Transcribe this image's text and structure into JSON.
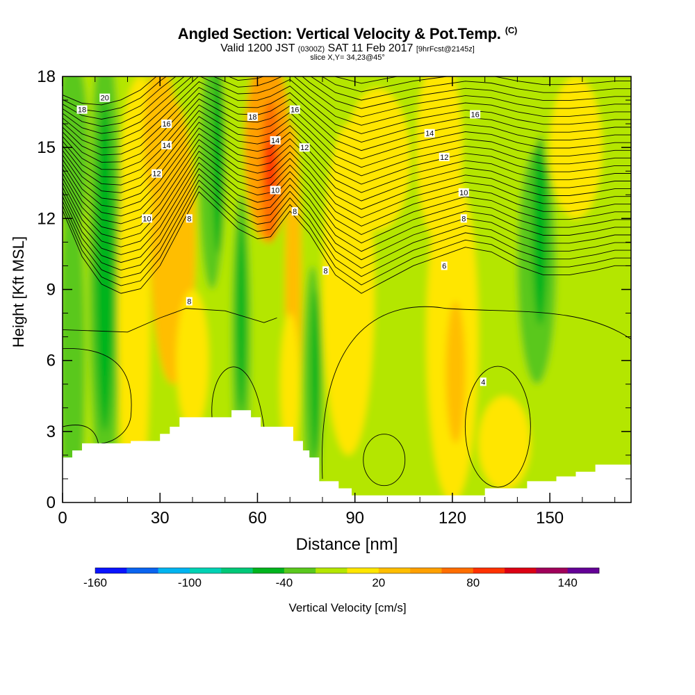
{
  "header": {
    "title_main": "Angled Section: Vertical Velocity & Pot.Temp.",
    "title_unit": "(C)",
    "valid_prefix": "Valid 1200 JST",
    "valid_zulu": "(0300Z)",
    "valid_date": "SAT 11 Feb 2017",
    "forecast_tag": "[9hrFcst@2145z]",
    "slice_label": "slice X,Y= 34,23@45°"
  },
  "chart_data": {
    "type": "heatmap",
    "xlabel": "Distance [nm]",
    "ylabel": "Height [Kft MSL]",
    "xlim": [
      0,
      175
    ],
    "ylim": [
      0,
      18
    ],
    "x_ticks": [
      0,
      30,
      60,
      90,
      120,
      150
    ],
    "y_ticks": [
      0,
      3,
      6,
      9,
      12,
      15,
      18
    ],
    "filled_variable": "Vertical Velocity [cm/s]",
    "colorbar": {
      "label": "Vertical Velocity [cm/s]",
      "tick_labels": [
        "-160",
        "-100",
        "-40",
        "20",
        "80",
        "140"
      ],
      "tick_values": [
        -160,
        -100,
        -40,
        20,
        80,
        140
      ],
      "range": [
        -160,
        160
      ],
      "colors": [
        "#0a14ff",
        "#0a64f0",
        "#00b4f0",
        "#00d2b4",
        "#00c878",
        "#00b41e",
        "#5ac81e",
        "#b4e600",
        "#ffe600",
        "#ffbe00",
        "#ffa000",
        "#ff6e00",
        "#ff3200",
        "#dc0014",
        "#a0005a",
        "#640096"
      ]
    },
    "contours": {
      "variable": "Potential Temperature (C)",
      "labels": [
        {
          "text": "20",
          "x": 13,
          "y": 17.1
        },
        {
          "text": "18",
          "x": 6,
          "y": 16.6
        },
        {
          "text": "16",
          "x": 32,
          "y": 16.0
        },
        {
          "text": "14",
          "x": 32,
          "y": 15.1
        },
        {
          "text": "12",
          "x": 29,
          "y": 13.9
        },
        {
          "text": "10",
          "x": 26,
          "y": 12.0
        },
        {
          "text": "8",
          "x": 39,
          "y": 12.0
        },
        {
          "text": "8",
          "x": 39,
          "y": 8.5
        },
        {
          "text": "18",
          "x": 58.5,
          "y": 16.3
        },
        {
          "text": "16",
          "x": 71.5,
          "y": 16.6
        },
        {
          "text": "14",
          "x": 65.5,
          "y": 15.3
        },
        {
          "text": "12",
          "x": 74.5,
          "y": 15.0
        },
        {
          "text": "10",
          "x": 65.5,
          "y": 13.2
        },
        {
          "text": "8",
          "x": 71.5,
          "y": 12.3
        },
        {
          "text": "8",
          "x": 81,
          "y": 9.8
        },
        {
          "text": "14",
          "x": 113,
          "y": 15.6
        },
        {
          "text": "16",
          "x": 127,
          "y": 16.4
        },
        {
          "text": "12",
          "x": 117.5,
          "y": 14.6
        },
        {
          "text": "10",
          "x": 123.5,
          "y": 13.1
        },
        {
          "text": "8",
          "x": 123.5,
          "y": 12.0
        },
        {
          "text": "6",
          "x": 117.5,
          "y": 10.0
        },
        {
          "text": "4",
          "x": 129.5,
          "y": 5.1
        }
      ]
    },
    "terrain_profile": [
      [
        0,
        1.9
      ],
      [
        3,
        1.9
      ],
      [
        3,
        2.2
      ],
      [
        6,
        2.2
      ],
      [
        6,
        2.5
      ],
      [
        21,
        2.5
      ],
      [
        21,
        2.6
      ],
      [
        30,
        2.6
      ],
      [
        30,
        2.9
      ],
      [
        33,
        2.9
      ],
      [
        33,
        3.2
      ],
      [
        36,
        3.2
      ],
      [
        36,
        3.6
      ],
      [
        52,
        3.6
      ],
      [
        52,
        3.9
      ],
      [
        58,
        3.9
      ],
      [
        58,
        3.6
      ],
      [
        61,
        3.6
      ],
      [
        61,
        3.2
      ],
      [
        71,
        3.2
      ],
      [
        71,
        2.6
      ],
      [
        74,
        2.6
      ],
      [
        74,
        2.2
      ],
      [
        76,
        2.2
      ],
      [
        76,
        1.9
      ],
      [
        79,
        1.9
      ],
      [
        79,
        0.9
      ],
      [
        85,
        0.9
      ],
      [
        85,
        0.6
      ],
      [
        89,
        0.6
      ],
      [
        89,
        0.3
      ],
      [
        130,
        0.3
      ],
      [
        130,
        0.6
      ],
      [
        143,
        0.6
      ],
      [
        143,
        0.9
      ],
      [
        152,
        0.9
      ],
      [
        152,
        1.1
      ],
      [
        158,
        1.1
      ],
      [
        158,
        1.3
      ],
      [
        164,
        1.3
      ],
      [
        164,
        1.6
      ],
      [
        175,
        1.6
      ]
    ]
  }
}
